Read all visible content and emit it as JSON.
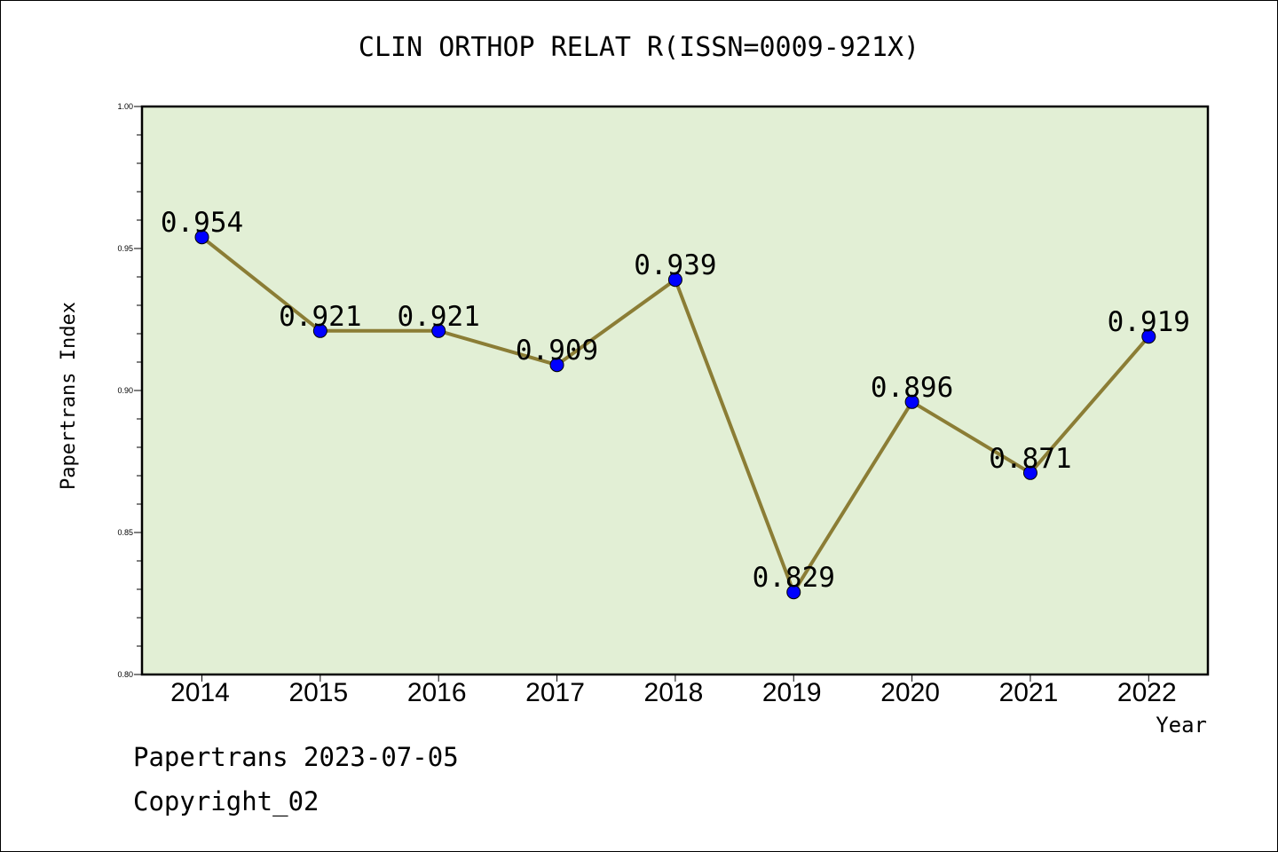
{
  "footer": {
    "line1": "Papertrans 2023-07-05",
    "line2": "Copyright_02"
  },
  "chart_data": {
    "type": "line",
    "title": "CLIN ORTHOP RELAT R(ISSN=0009-921X)",
    "xlabel": "Year",
    "ylabel": "Papertrans Index",
    "x": [
      "2014",
      "2015",
      "2016",
      "2017",
      "2018",
      "2019",
      "2020",
      "2021",
      "2022"
    ],
    "series": [
      {
        "values": [
          0.954,
          0.921,
          0.921,
          0.909,
          0.939,
          0.829,
          0.896,
          0.871,
          0.919
        ]
      }
    ],
    "data_labels": [
      "0.954",
      "0.921",
      "0.921",
      "0.909",
      "0.939",
      "0.829",
      "0.896",
      "0.871",
      "0.919"
    ],
    "ylim": [
      0.8,
      1.0
    ],
    "yticks": [
      "0.80",
      "0.85",
      "0.90",
      "0.95",
      "1.00"
    ],
    "grid": false,
    "colors": {
      "plot_background": "#e2efd5",
      "line": "#8b7d35",
      "marker": "#0000ff"
    }
  }
}
